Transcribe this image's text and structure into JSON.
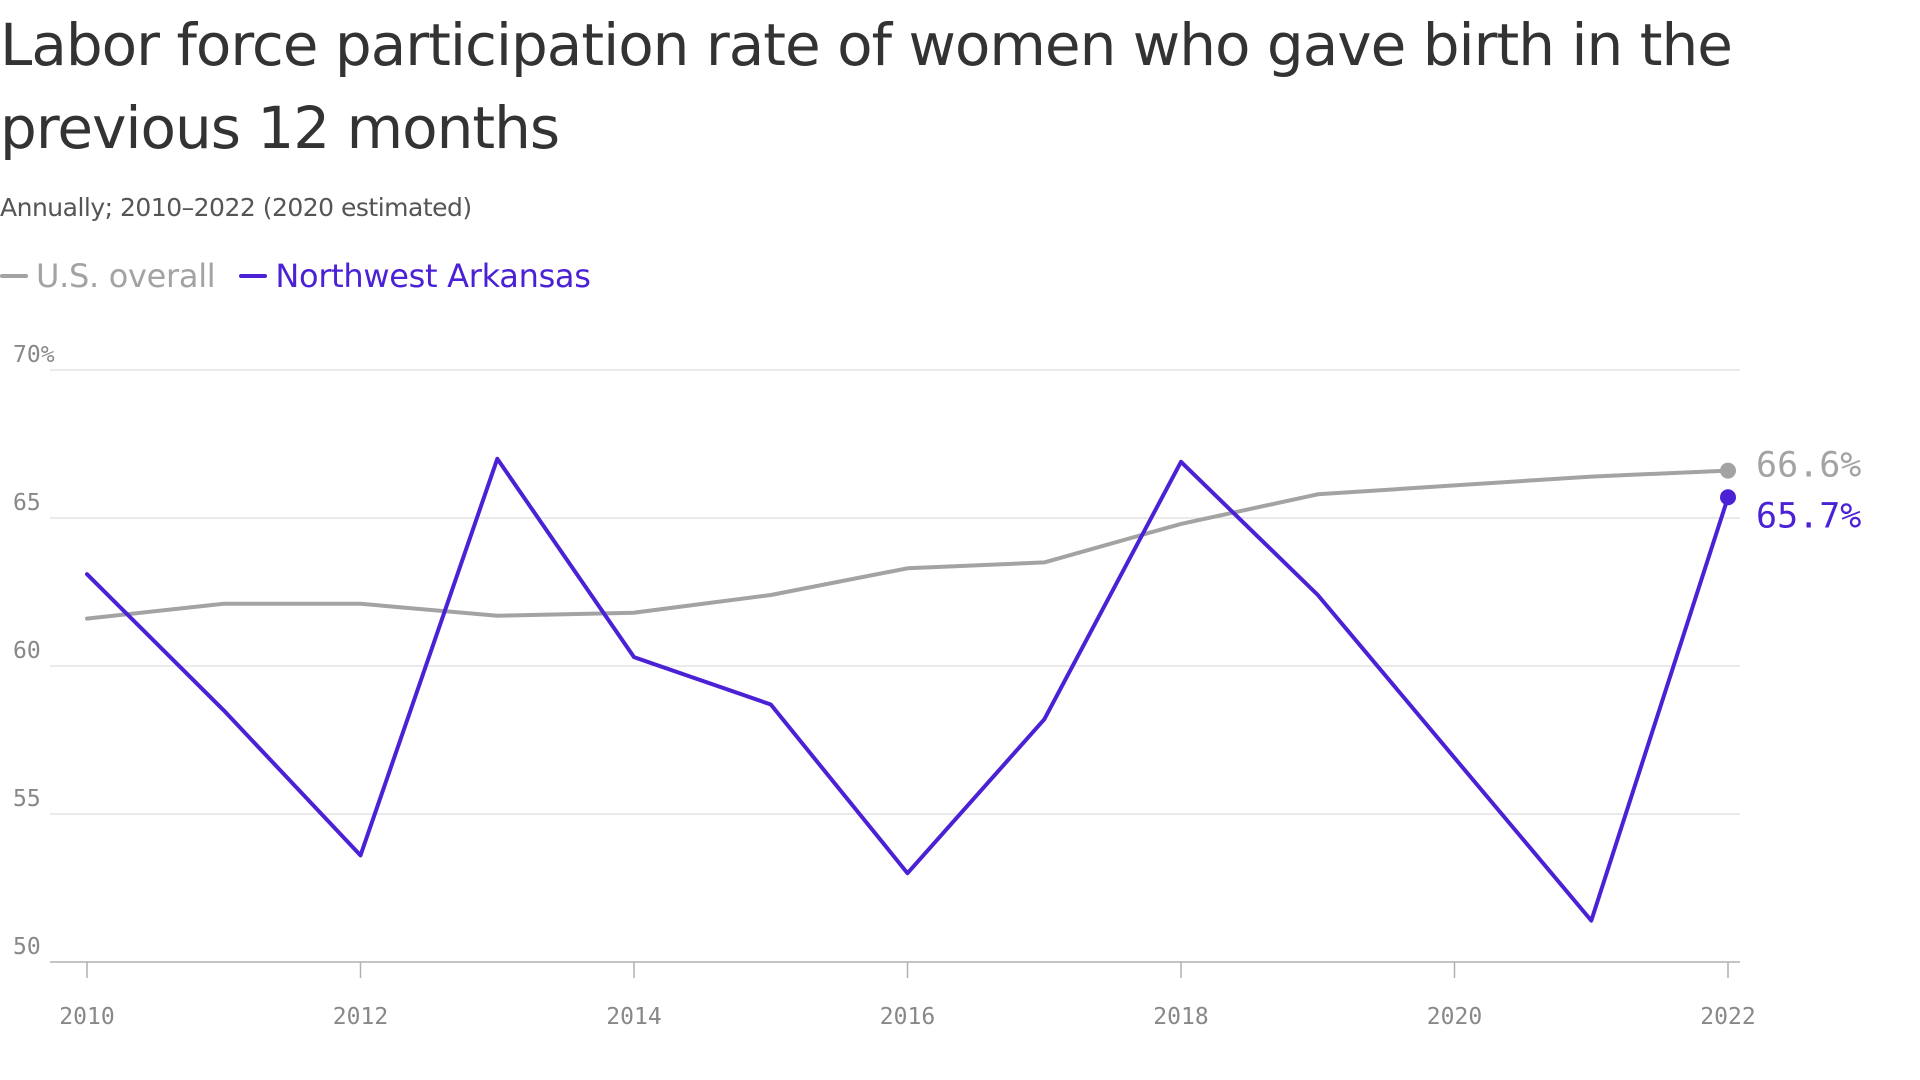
{
  "title": "Labor force participation rate of women who gave birth in the previous 12 months",
  "subtitle": "Annually; 2010–2022 (2020 estimated)",
  "colors": {
    "us": "#a3a3a3",
    "nwa": "#4b21d6",
    "grid": "#dddddd",
    "axis": "#b0b0b0"
  },
  "chart_data": {
    "type": "line",
    "title": "Labor force participation rate of women who gave birth in the previous 12 months",
    "subtitle": "Annually; 2010–2022 (2020 estimated)",
    "x": [
      2010,
      2011,
      2012,
      2013,
      2014,
      2015,
      2016,
      2017,
      2018,
      2019,
      2020,
      2021,
      2022
    ],
    "series": [
      {
        "name": "U.S. overall",
        "color": "#a3a3a3",
        "values": [
          61.6,
          62.1,
          62.1,
          61.7,
          61.8,
          62.4,
          63.3,
          63.5,
          64.8,
          65.8,
          66.1,
          66.4,
          66.6
        ],
        "end_label": "66.6%"
      },
      {
        "name": "Northwest Arkansas",
        "color": "#4b21d6",
        "values": [
          63.1,
          58.5,
          53.6,
          67.0,
          60.3,
          58.7,
          53.0,
          58.2,
          66.9,
          62.4,
          56.9,
          51.4,
          65.7
        ],
        "end_label": "65.7%"
      }
    ],
    "ylim": [
      50,
      70
    ],
    "yticks": [
      50,
      55,
      60,
      65,
      70
    ],
    "ytick_labels": [
      "50",
      "55",
      "60",
      "65",
      "70%"
    ],
    "xticks": [
      2010,
      2012,
      2014,
      2016,
      2018,
      2020,
      2022
    ],
    "xtick_labels": [
      "2010",
      "2012",
      "2014",
      "2016",
      "2018",
      "2020",
      "2022"
    ],
    "grid": true,
    "legend": "top-left"
  }
}
